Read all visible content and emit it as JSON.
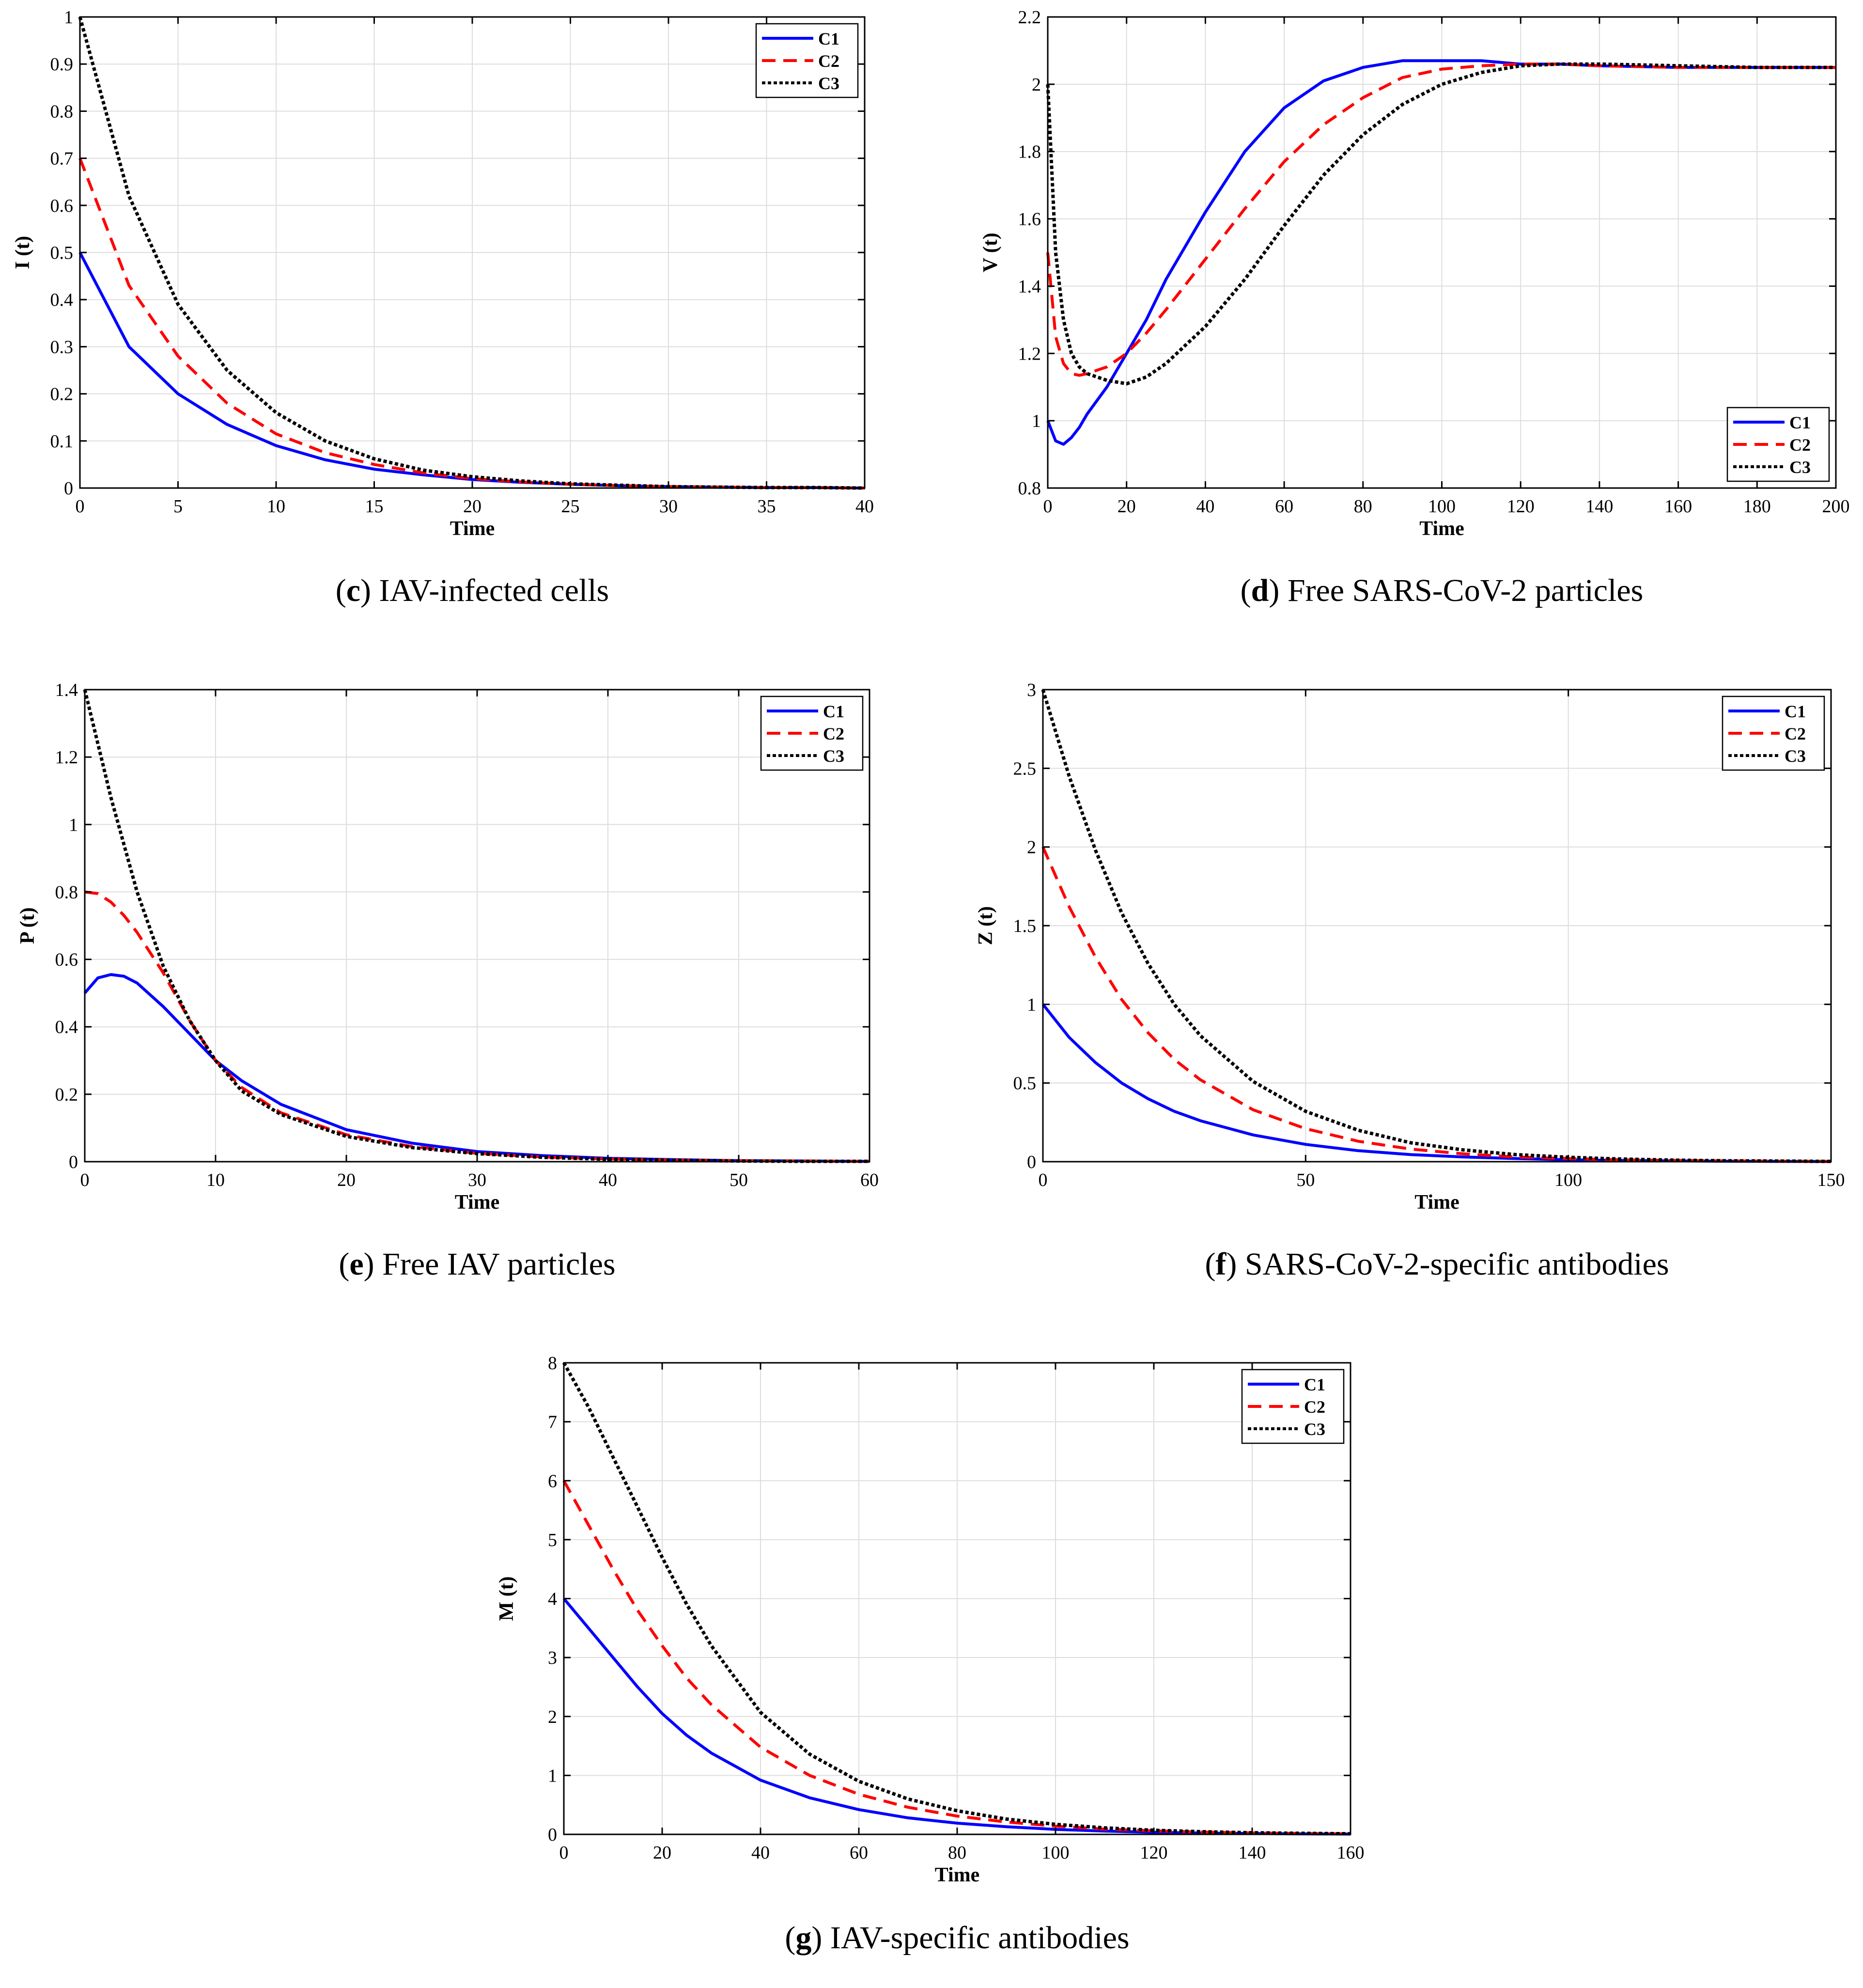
{
  "series_names": [
    "C1",
    "C2",
    "C3"
  ],
  "colors": {
    "C1": "#0000ff",
    "C2": "#ff0000",
    "C3": "#000000",
    "grid": "#dddddd",
    "axis": "#000000"
  },
  "chart_data": [
    {
      "id": "c",
      "type": "line",
      "caption_letter": "c",
      "caption_text": "IAV-infected cells",
      "xlabel": "Time",
      "ylabel": "I (t)",
      "xlim": [
        0,
        40
      ],
      "ylim": [
        0,
        1
      ],
      "xticks": [
        0,
        5,
        10,
        15,
        20,
        25,
        30,
        35,
        40
      ],
      "xtick_labels": [
        "0",
        "5",
        "10",
        "15",
        "20",
        "25",
        "30",
        "35",
        "40"
      ],
      "yticks": [
        0,
        0.1,
        0.2,
        0.3,
        0.4,
        0.5,
        0.6,
        0.7,
        0.8,
        0.9,
        1
      ],
      "ytick_labels": [
        "0",
        "0.1",
        "0.2",
        "0.3",
        "0.4",
        "0.5",
        "0.6",
        "0.7",
        "0.8",
        "0.9",
        "1"
      ],
      "legend_loc": "top-right",
      "x": [
        0,
        2.5,
        5,
        7.5,
        10,
        12.5,
        15,
        17.5,
        20,
        22.5,
        25,
        27.5,
        30,
        32.5,
        35,
        37.5,
        40
      ],
      "series": [
        {
          "name": "C1",
          "values": [
            0.5,
            0.3,
            0.2,
            0.135,
            0.09,
            0.06,
            0.04,
            0.028,
            0.018,
            0.012,
            0.008,
            0.005,
            0.003,
            0.002,
            0.001,
            0.001,
            0.0
          ]
        },
        {
          "name": "C2",
          "values": [
            0.7,
            0.43,
            0.28,
            0.18,
            0.115,
            0.075,
            0.05,
            0.032,
            0.02,
            0.013,
            0.008,
            0.005,
            0.003,
            0.002,
            0.001,
            0.001,
            0.0
          ]
        },
        {
          "name": "C3",
          "values": [
            1.0,
            0.62,
            0.39,
            0.25,
            0.16,
            0.1,
            0.062,
            0.038,
            0.024,
            0.015,
            0.009,
            0.006,
            0.003,
            0.002,
            0.001,
            0.001,
            0.0
          ]
        }
      ]
    },
    {
      "id": "d",
      "type": "line",
      "caption_letter": "d",
      "caption_text": "Free SARS-CoV-2 particles",
      "xlabel": "Time",
      "ylabel": "V (t)",
      "xlim": [
        0,
        200
      ],
      "ylim": [
        0.8,
        2.2
      ],
      "xticks": [
        0,
        20,
        40,
        60,
        80,
        100,
        120,
        140,
        160,
        180,
        200
      ],
      "xtick_labels": [
        "0",
        "20",
        "40",
        "60",
        "80",
        "100",
        "120",
        "140",
        "160",
        "180",
        "200"
      ],
      "yticks": [
        0.8,
        1,
        1.2,
        1.4,
        1.6,
        1.8,
        2,
        2.2
      ],
      "ytick_labels": [
        "0.8",
        "1",
        "1.2",
        "1.4",
        "1.6",
        "1.8",
        "2",
        "2.2"
      ],
      "legend_loc": "bottom-right",
      "x": [
        0,
        2,
        4,
        6,
        8,
        10,
        15,
        20,
        25,
        30,
        40,
        50,
        60,
        70,
        80,
        90,
        100,
        110,
        120,
        130,
        140,
        160,
        180,
        200
      ],
      "series": [
        {
          "name": "C1",
          "values": [
            1.0,
            0.94,
            0.93,
            0.95,
            0.98,
            1.02,
            1.1,
            1.2,
            1.3,
            1.42,
            1.62,
            1.8,
            1.93,
            2.01,
            2.05,
            2.07,
            2.07,
            2.07,
            2.06,
            2.06,
            2.055,
            2.05,
            2.05,
            2.05
          ]
        },
        {
          "name": "C2",
          "values": [
            1.5,
            1.25,
            1.17,
            1.14,
            1.135,
            1.14,
            1.16,
            1.2,
            1.26,
            1.33,
            1.48,
            1.63,
            1.77,
            1.88,
            1.96,
            2.02,
            2.045,
            2.055,
            2.06,
            2.06,
            2.055,
            2.05,
            2.05,
            2.05
          ]
        },
        {
          "name": "C3",
          "values": [
            2.0,
            1.5,
            1.3,
            1.2,
            1.16,
            1.14,
            1.12,
            1.11,
            1.13,
            1.17,
            1.28,
            1.42,
            1.58,
            1.73,
            1.85,
            1.94,
            2.0,
            2.035,
            2.055,
            2.06,
            2.06,
            2.055,
            2.05,
            2.05
          ]
        }
      ]
    },
    {
      "id": "e",
      "type": "line",
      "caption_letter": "e",
      "caption_text": "Free IAV particles",
      "xlabel": "Time",
      "ylabel": "P (t)",
      "xlim": [
        0,
        60
      ],
      "ylim": [
        0,
        1.4
      ],
      "xticks": [
        0,
        10,
        20,
        30,
        40,
        50,
        60
      ],
      "xtick_labels": [
        "0",
        "10",
        "20",
        "30",
        "40",
        "50",
        "60"
      ],
      "yticks": [
        0,
        0.2,
        0.4,
        0.6,
        0.8,
        1,
        1.2,
        1.4
      ],
      "ytick_labels": [
        "0",
        "0.2",
        "0.4",
        "0.6",
        "0.8",
        "1",
        "1.2",
        "1.4"
      ],
      "legend_loc": "top-right",
      "x": [
        0,
        1,
        2,
        3,
        4,
        6,
        8,
        10,
        12,
        15,
        20,
        25,
        30,
        35,
        40,
        45,
        50,
        55,
        60
      ],
      "series": [
        {
          "name": "C1",
          "values": [
            0.5,
            0.545,
            0.555,
            0.55,
            0.53,
            0.46,
            0.38,
            0.3,
            0.24,
            0.17,
            0.095,
            0.055,
            0.03,
            0.018,
            0.01,
            0.006,
            0.003,
            0.002,
            0.001
          ]
        },
        {
          "name": "C2",
          "values": [
            0.8,
            0.795,
            0.77,
            0.73,
            0.68,
            0.56,
            0.42,
            0.3,
            0.22,
            0.145,
            0.08,
            0.045,
            0.025,
            0.014,
            0.008,
            0.005,
            0.003,
            0.002,
            0.001
          ]
        },
        {
          "name": "C3",
          "values": [
            1.4,
            1.24,
            1.08,
            0.94,
            0.8,
            0.58,
            0.42,
            0.3,
            0.21,
            0.14,
            0.075,
            0.042,
            0.024,
            0.013,
            0.007,
            0.004,
            0.002,
            0.001,
            0.001
          ]
        }
      ]
    },
    {
      "id": "f",
      "type": "line",
      "caption_letter": "f",
      "caption_text": "SARS-CoV-2-specific antibodies",
      "xlabel": "Time",
      "ylabel": "Z (t)",
      "xlim": [
        0,
        150
      ],
      "ylim": [
        0,
        3
      ],
      "xticks": [
        0,
        50,
        100,
        150
      ],
      "xtick_labels": [
        "0",
        "50",
        "100",
        "150"
      ],
      "yticks": [
        0,
        0.5,
        1,
        1.5,
        2,
        2.5,
        3
      ],
      "ytick_labels": [
        "0",
        "0.5",
        "1",
        "1.5",
        "2",
        "2.5",
        "3"
      ],
      "legend_loc": "top-right",
      "x": [
        0,
        5,
        10,
        15,
        20,
        25,
        30,
        40,
        50,
        60,
        70,
        80,
        90,
        100,
        110,
        120,
        130,
        140,
        150
      ],
      "series": [
        {
          "name": "C1",
          "values": [
            1.0,
            0.79,
            0.63,
            0.5,
            0.4,
            0.32,
            0.26,
            0.17,
            0.11,
            0.07,
            0.045,
            0.03,
            0.02,
            0.012,
            0.008,
            0.005,
            0.003,
            0.002,
            0.001
          ]
        },
        {
          "name": "C2",
          "values": [
            2.0,
            1.62,
            1.3,
            1.03,
            0.82,
            0.65,
            0.52,
            0.33,
            0.21,
            0.13,
            0.08,
            0.05,
            0.03,
            0.02,
            0.012,
            0.008,
            0.005,
            0.003,
            0.002
          ]
        },
        {
          "name": "C3",
          "values": [
            3.0,
            2.45,
            1.98,
            1.58,
            1.26,
            1.0,
            0.8,
            0.51,
            0.32,
            0.2,
            0.12,
            0.075,
            0.045,
            0.028,
            0.017,
            0.01,
            0.006,
            0.004,
            0.002
          ]
        }
      ]
    },
    {
      "id": "g",
      "type": "line",
      "caption_letter": "g",
      "caption_text": "IAV-specific antibodies",
      "xlabel": "Time",
      "ylabel": "M (t)",
      "xlim": [
        0,
        160
      ],
      "ylim": [
        0,
        8
      ],
      "xticks": [
        0,
        20,
        40,
        60,
        80,
        100,
        120,
        140,
        160
      ],
      "xtick_labels": [
        "0",
        "20",
        "40",
        "60",
        "80",
        "100",
        "120",
        "140",
        "160"
      ],
      "yticks": [
        0,
        1,
        2,
        3,
        4,
        5,
        6,
        7,
        8
      ],
      "ytick_labels": [
        "0",
        "1",
        "2",
        "3",
        "4",
        "5",
        "6",
        "7",
        "8"
      ],
      "legend_loc": "top-right",
      "x": [
        0,
        5,
        10,
        15,
        20,
        25,
        30,
        40,
        50,
        60,
        70,
        80,
        90,
        100,
        110,
        120,
        130,
        140,
        150,
        160
      ],
      "series": [
        {
          "name": "C1",
          "values": [
            4.0,
            3.5,
            3.0,
            2.5,
            2.05,
            1.68,
            1.38,
            0.92,
            0.62,
            0.42,
            0.28,
            0.19,
            0.13,
            0.085,
            0.055,
            0.035,
            0.022,
            0.014,
            0.008,
            0.005
          ]
        },
        {
          "name": "C2",
          "values": [
            6.0,
            5.25,
            4.5,
            3.8,
            3.2,
            2.65,
            2.2,
            1.48,
            1.0,
            0.68,
            0.46,
            0.31,
            0.21,
            0.14,
            0.09,
            0.06,
            0.038,
            0.024,
            0.015,
            0.009
          ]
        },
        {
          "name": "C3",
          "values": [
            8.0,
            7.25,
            6.4,
            5.55,
            4.7,
            3.9,
            3.2,
            2.07,
            1.36,
            0.9,
            0.6,
            0.4,
            0.26,
            0.17,
            0.11,
            0.07,
            0.045,
            0.028,
            0.018,
            0.011
          ]
        }
      ]
    }
  ]
}
